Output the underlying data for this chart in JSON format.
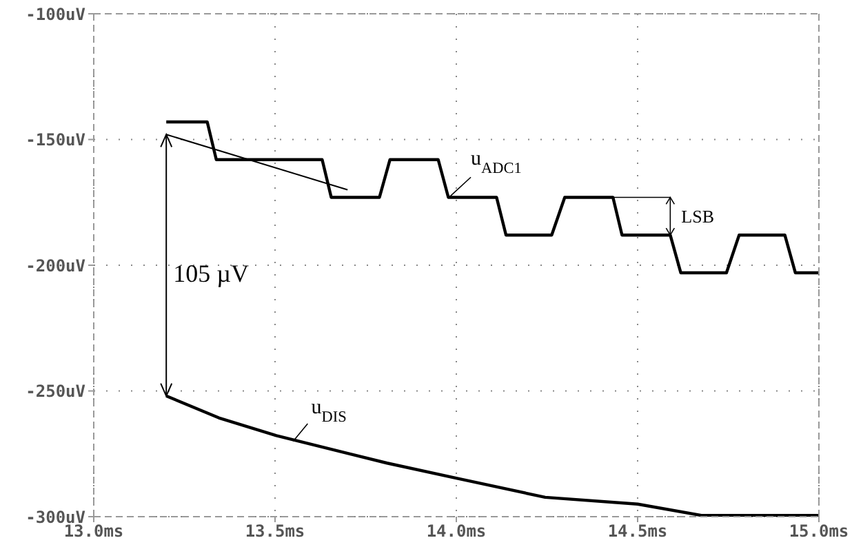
{
  "chart_data": {
    "type": "line",
    "xlim": [
      13.0,
      15.0
    ],
    "ylim": [
      -300,
      -100
    ],
    "xticks": [
      {
        "value": 13.0,
        "label": "13.0ms"
      },
      {
        "value": 13.5,
        "label": "13.5ms"
      },
      {
        "value": 14.0,
        "label": "14.0ms"
      },
      {
        "value": 14.5,
        "label": "14.5ms"
      },
      {
        "value": 15.0,
        "label": "15.0ms"
      }
    ],
    "yticks": [
      {
        "value": -300,
        "label": "-300uV"
      },
      {
        "value": -250,
        "label": "-250uV"
      },
      {
        "value": -200,
        "label": "-200uV"
      },
      {
        "value": -150,
        "label": "-150uV"
      },
      {
        "value": -100,
        "label": "-100uV"
      }
    ],
    "grid": true,
    "line_style": "solid",
    "marker": "none",
    "series": [
      {
        "name": "u$_{ADC1}$",
        "color": "#000000",
        "x": [
          13.2,
          13.313,
          13.338,
          13.63,
          13.655,
          13.788,
          13.817,
          13.95,
          13.978,
          14.111,
          14.137,
          14.263,
          14.299,
          14.432,
          14.457,
          14.59,
          14.619,
          14.745,
          14.78,
          14.906,
          14.935,
          15.0
        ],
        "values": [
          -143,
          -143,
          -158,
          -158,
          -173,
          -173,
          -158,
          -158,
          -173,
          -173,
          -188,
          -188,
          -173,
          -173,
          -188,
          -188,
          -203,
          -203,
          -188,
          -188,
          -203,
          -203
        ]
      },
      {
        "name": "u$_{DIS}$",
        "color": "#000000",
        "x": [
          13.2,
          13.345,
          13.504,
          13.809,
          14.0,
          14.245,
          14.5,
          14.676,
          14.863,
          15.0
        ],
        "values": [
          -252,
          -260.7,
          -267.8,
          -278.7,
          -284.7,
          -292.3,
          -295,
          -299.5,
          -299.5,
          -299.5
        ]
      },
      {
        "color": "#000000",
        "x": [
          13.2,
          13.7
        ],
        "values": [
          -148,
          -170
        ]
      }
    ],
    "annotations": [
      "105 µV",
      {
        "text": "LSB",
        "x": 14.59,
        "y": -188
      }
    ]
  }
}
